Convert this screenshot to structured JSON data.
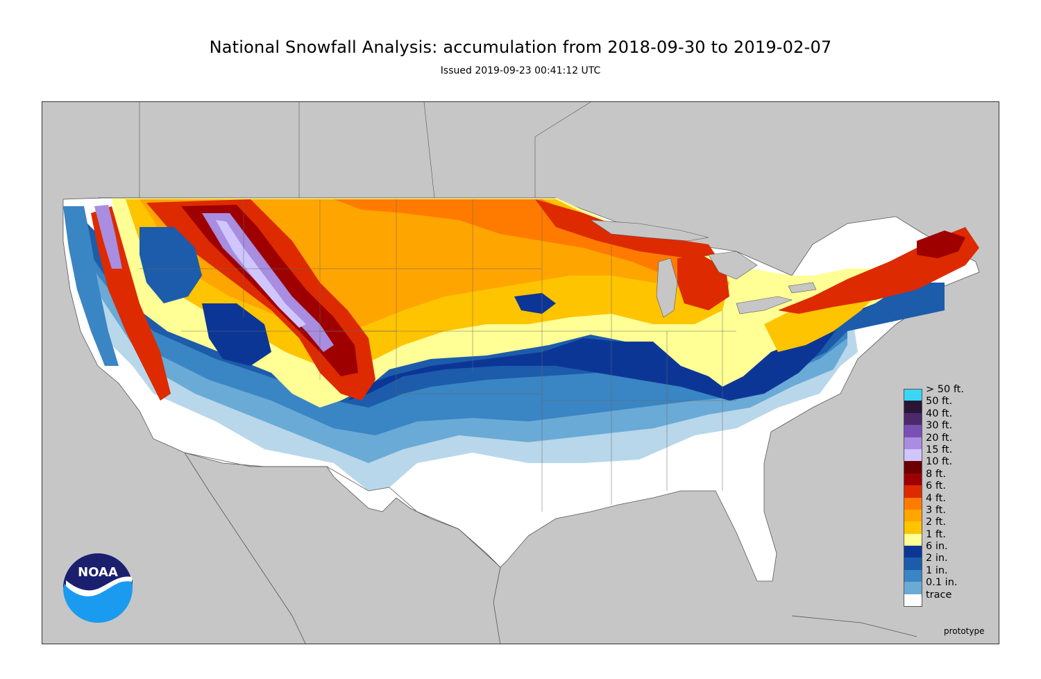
{
  "title": "National Snowfall Analysis: accumulation from 2018-09-30 to 2019-02-07",
  "subtitle": "Issued 2019-09-23 00:41:12 UTC",
  "footer_note": "prototype",
  "logo_text": "NOAA",
  "colors": {
    "background_land": "#c6c6c6",
    "trace": "#ffffff",
    "lt_0_1in": "#b9d7ea",
    "lt_1in": "#6aaad6",
    "lt_2in": "#3a85c3",
    "lt_6in": "#1c5cab",
    "lt_1ft": "#0c3696",
    "lt_2ft": "#ffff96",
    "lt_3ft": "#ffc400",
    "lt_4ft": "#ffa500",
    "lt_6ft": "#ff7b00",
    "lt_8ft": "#dd2a00",
    "lt_10ft": "#9e0000",
    "lt_15ft": "#6c0000",
    "lt_20ft": "#cfc6ff",
    "lt_30ft": "#a88de0",
    "lt_40ft": "#7a4fb5",
    "lt_50ft": "#4a2a6a",
    "gt_50ft": "#3ad6f5"
  },
  "legend": [
    {
      "label": "> 50 ft.",
      "color": "#3ad6f5"
    },
    {
      "label": "50 ft.",
      "color": "#2a1535"
    },
    {
      "label": "40 ft.",
      "color": "#4a2a6a"
    },
    {
      "label": "30 ft.",
      "color": "#7a4fb5"
    },
    {
      "label": "20 ft.",
      "color": "#a88de0"
    },
    {
      "label": "15 ft.",
      "color": "#cfc6ff"
    },
    {
      "label": "10 ft.",
      "color": "#6c0000"
    },
    {
      "label": "8 ft.",
      "color": "#9e0000"
    },
    {
      "label": "6 ft.",
      "color": "#dd2a00"
    },
    {
      "label": "4 ft.",
      "color": "#ff7b00"
    },
    {
      "label": "3 ft.",
      "color": "#ffa500"
    },
    {
      "label": "2 ft.",
      "color": "#ffc400"
    },
    {
      "label": "1 ft.",
      "color": "#ffff96"
    },
    {
      "label": "6 in.",
      "color": "#0c3696"
    },
    {
      "label": "2 in.",
      "color": "#1c5cab"
    },
    {
      "label": "1 in.",
      "color": "#3a85c3"
    },
    {
      "label": "0.1 in.",
      "color": "#6aaad6"
    },
    {
      "label": "trace",
      "color": "#ffffff"
    }
  ]
}
